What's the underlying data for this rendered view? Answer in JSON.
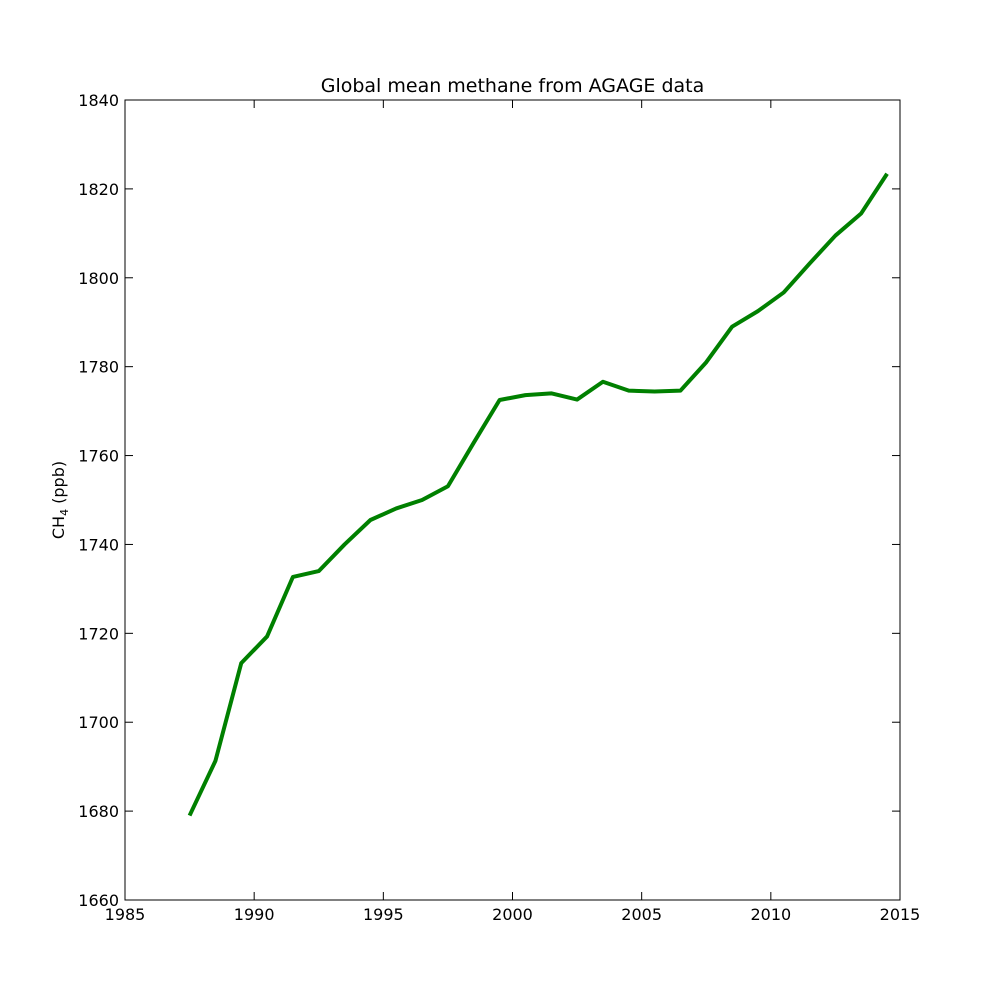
{
  "chart_data": {
    "type": "line",
    "title": "Global mean methane from AGAGE data",
    "ylabel_main": "CH",
    "ylabel_sub": "4",
    "ylabel_unit": " (ppb)",
    "xlabel": "",
    "xlim": [
      1985,
      2015
    ],
    "ylim": [
      1660,
      1840
    ],
    "xticks": [
      "1985",
      "1990",
      "1995",
      "2000",
      "2005",
      "2010",
      "2015"
    ],
    "yticks": [
      "1660",
      "1680",
      "1700",
      "1720",
      "1740",
      "1760",
      "1780",
      "1800",
      "1820",
      "1840"
    ],
    "grid": false,
    "line_color": "#008000",
    "series": [
      {
        "x": [
          1987.5,
          1988.5,
          1989.5,
          1990.5,
          1991.5,
          1992.5,
          1993.5,
          1994.5,
          1995.5,
          1996.5,
          1997.5,
          1998.5,
          1999.5,
          2000.5,
          2001.5,
          2002.5,
          2003.5,
          2004.5,
          2005.5,
          2006.5,
          2007.5,
          2008.5,
          2009.5,
          2010.5,
          2011.5,
          2012.5,
          2013.5,
          2014.5
        ],
        "y": [
          1679,
          1691.3,
          1713.3,
          1719.3,
          1732.7,
          1734,
          1740,
          1745.5,
          1748.1,
          1750,
          1753.1,
          1762.9,
          1772.5,
          1773.6,
          1774,
          1772.6,
          1776.6,
          1774.6,
          1774.4,
          1774.6,
          1781,
          1789,
          1792.5,
          1796.7,
          1803.2,
          1809.5,
          1814.5,
          1823.4
        ]
      }
    ]
  }
}
